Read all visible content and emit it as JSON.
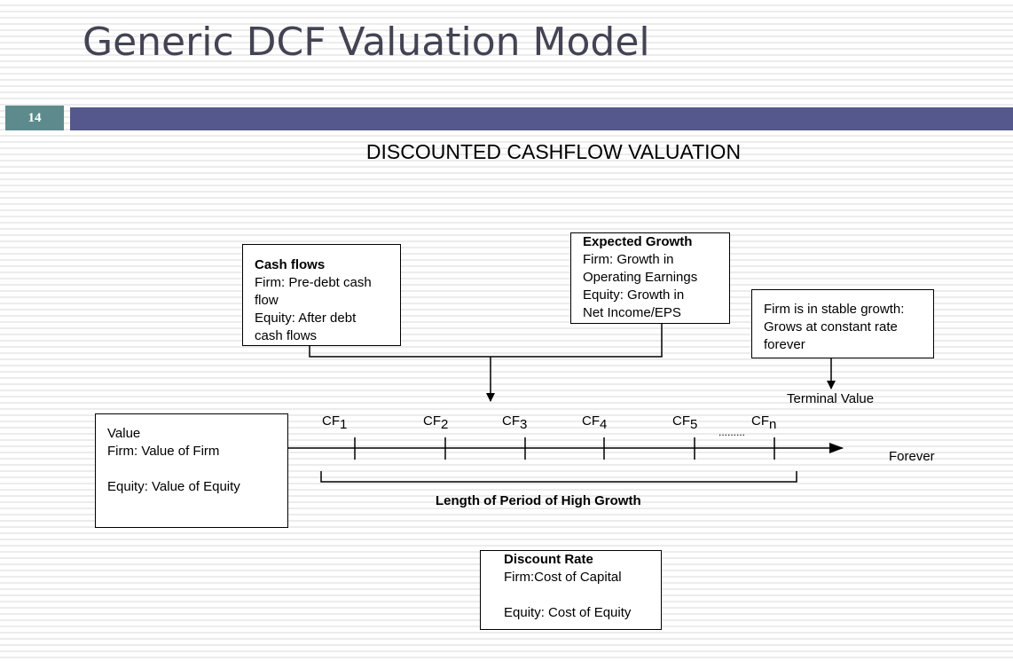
{
  "slide": {
    "title": "Generic DCF Valuation Model",
    "number": "14",
    "heading": "DISCOUNTED CASHFLOW VALUATION"
  },
  "diagram": {
    "cash_flows": {
      "title": "Cash flows",
      "lines": [
        "Firm: Pre-debt cash",
        "flow",
        "Equity: After debt",
        "cash flows"
      ]
    },
    "expected_growth": {
      "title": "Expected Growth",
      "lines": [
        "Firm: Growth in",
        "Operating Earnings",
        "Equity: Growth in",
        "Net Income/EPS"
      ]
    },
    "stable_growth": {
      "lines": [
        "Firm is in stable growth:",
        "Grows at constant rate",
        "forever"
      ]
    },
    "terminal_value": "Terminal Value",
    "value_box": {
      "lines": [
        "Value",
        "Firm: Value of Firm",
        "",
        "Equity: Value of Equity"
      ]
    },
    "cash_flow_labels": [
      {
        "base": "CF",
        "sub": "1"
      },
      {
        "base": "CF",
        "sub": "2"
      },
      {
        "base": "CF",
        "sub": "3"
      },
      {
        "base": "CF",
        "sub": "4"
      },
      {
        "base": "CF",
        "sub": "5"
      },
      {
        "base": "CF",
        "sub": "n"
      }
    ],
    "ellipsis": ".........",
    "forever": "Forever",
    "period_label": "Length of Period of High Growth",
    "discount_rate": {
      "title": "Discount Rate",
      "lines": [
        "Firm:Cost of Capital",
        "",
        "Equity: Cost of Equity"
      ]
    }
  }
}
